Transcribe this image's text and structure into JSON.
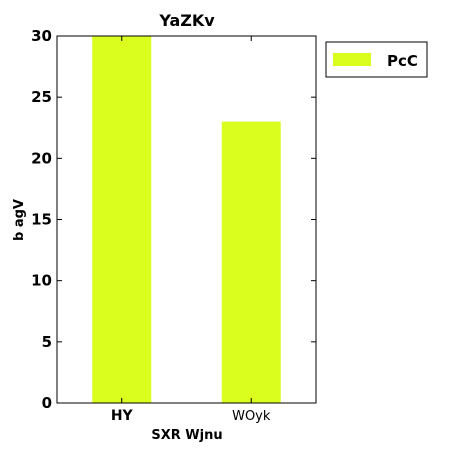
{
  "chart_data": {
    "type": "bar",
    "title": "YaZKv",
    "xlabel": "SXR  Wjnu",
    "ylabel": "b agV",
    "categories": [
      "HY",
      "WOyk"
    ],
    "series": [
      {
        "name": "PcC",
        "values": [
          30,
          23
        ],
        "color": "#daff1f"
      }
    ],
    "ylim": [
      0,
      30
    ],
    "yticks": [
      0,
      5,
      10,
      15,
      20,
      25,
      30
    ],
    "grid": false,
    "legend_position": "outside-top-right"
  }
}
